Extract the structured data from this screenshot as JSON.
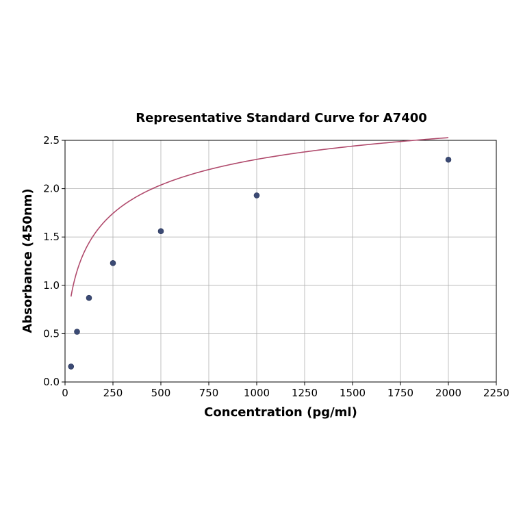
{
  "chart_data": {
    "type": "scatter",
    "title": "Representative Standard Curve for A7400",
    "xlabel": "Concentration (pg/ml)",
    "ylabel": "Absorbance (450nm)",
    "xlim": [
      0,
      2250
    ],
    "ylim": [
      0,
      2.5
    ],
    "xticks": [
      0,
      250,
      500,
      750,
      1000,
      1250,
      1500,
      1750,
      2000,
      2250
    ],
    "yticks": [
      0.0,
      0.5,
      1.0,
      1.5,
      2.0,
      2.5
    ],
    "xtick_labels": [
      "0",
      "250",
      "500",
      "750",
      "1000",
      "1250",
      "1500",
      "1750",
      "2000",
      "2250"
    ],
    "ytick_labels": [
      "0.0",
      "0.5",
      "1.0",
      "1.5",
      "2.0",
      "2.5"
    ],
    "grid": true,
    "series": [
      {
        "type": "scatter",
        "x": [
          31.25,
          62.5,
          125,
          250,
          500,
          1000,
          2000
        ],
        "y": [
          0.16,
          0.52,
          0.87,
          1.23,
          1.56,
          1.93,
          2.3
        ],
        "color": "#3b4a74"
      },
      {
        "type": "line",
        "fit": "4PL",
        "params": {
          "A": 0.0,
          "B": 0.55,
          "C": 180,
          "D": 3.2
        },
        "x_range": [
          31.25,
          2000
        ],
        "color": "#b04a6c"
      }
    ]
  }
}
